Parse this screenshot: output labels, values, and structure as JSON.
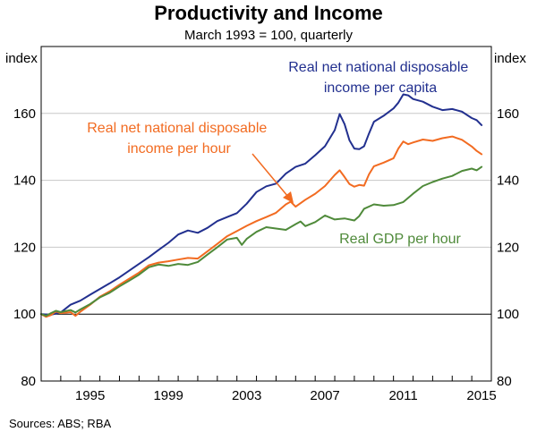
{
  "chart_data": {
    "type": "line",
    "title": "Productivity and Income",
    "subtitle": "March 1993 = 100, quarterly",
    "left_axis_label": "index",
    "right_axis_label": "index",
    "source": "Sources:  ABS; RBA",
    "x_range": [
      1993.0,
      2016.0
    ],
    "ylim": [
      80,
      180
    ],
    "y_ticks": [
      80,
      100,
      120,
      140,
      160
    ],
    "x_tick_years": [
      1995,
      1999,
      2003,
      2007,
      2011,
      2015
    ],
    "x_tick_labels": [
      "1995",
      "1999",
      "2003",
      "2007",
      "2011",
      "2015"
    ],
    "series": [
      {
        "name": "Real net national disposable income per capita",
        "label_lines": [
          "Real net national disposable",
          "income per capita"
        ],
        "color": "#22308f",
        "points": [
          [
            1993.0,
            100.0
          ],
          [
            1993.5,
            99.8
          ],
          [
            1994.0,
            100.5
          ],
          [
            1994.5,
            102.8
          ],
          [
            1995.0,
            104.0
          ],
          [
            1995.5,
            105.8
          ],
          [
            1996.0,
            107.5
          ],
          [
            1996.5,
            109.2
          ],
          [
            1997.0,
            111.0
          ],
          [
            1997.5,
            113.0
          ],
          [
            1998.0,
            115.0
          ],
          [
            1998.5,
            117.0
          ],
          [
            1999.0,
            119.2
          ],
          [
            1999.5,
            121.3
          ],
          [
            2000.0,
            123.8
          ],
          [
            2000.5,
            125.0
          ],
          [
            2001.0,
            124.3
          ],
          [
            2001.5,
            125.8
          ],
          [
            2002.0,
            127.8
          ],
          [
            2002.5,
            129.0
          ],
          [
            2003.0,
            130.2
          ],
          [
            2003.5,
            133.0
          ],
          [
            2004.0,
            136.5
          ],
          [
            2004.5,
            138.2
          ],
          [
            2005.0,
            139.0
          ],
          [
            2005.5,
            142.0
          ],
          [
            2006.0,
            144.0
          ],
          [
            2006.5,
            145.0
          ],
          [
            2007.0,
            147.5
          ],
          [
            2007.5,
            150.2
          ],
          [
            2008.0,
            155.0
          ],
          [
            2008.25,
            159.8
          ],
          [
            2008.5,
            156.8
          ],
          [
            2008.75,
            152.0
          ],
          [
            2009.0,
            149.5
          ],
          [
            2009.25,
            149.3
          ],
          [
            2009.5,
            150.2
          ],
          [
            2009.75,
            154.0
          ],
          [
            2010.0,
            157.5
          ],
          [
            2010.5,
            159.3
          ],
          [
            2011.0,
            161.5
          ],
          [
            2011.25,
            163.2
          ],
          [
            2011.5,
            165.7
          ],
          [
            2011.75,
            165.4
          ],
          [
            2012.0,
            164.3
          ],
          [
            2012.5,
            163.5
          ],
          [
            2013.0,
            162.0
          ],
          [
            2013.5,
            161.0
          ],
          [
            2014.0,
            161.3
          ],
          [
            2014.5,
            160.5
          ],
          [
            2015.0,
            158.6
          ],
          [
            2015.25,
            158.0
          ],
          [
            2015.5,
            156.5
          ]
        ]
      },
      {
        "name": "Real net national disposable income per hour",
        "label_lines": [
          "Real net national disposable",
          "income per hour"
        ],
        "color": "#f26b21",
        "points": [
          [
            1993.0,
            100.0
          ],
          [
            1993.25,
            99.2
          ],
          [
            1993.5,
            99.7
          ],
          [
            1993.75,
            100.8
          ],
          [
            1994.0,
            100.3
          ],
          [
            1994.5,
            100.6
          ],
          [
            1994.75,
            99.5
          ],
          [
            1995.0,
            100.7
          ],
          [
            1995.5,
            102.8
          ],
          [
            1996.0,
            105.2
          ],
          [
            1996.5,
            106.8
          ],
          [
            1997.0,
            108.8
          ],
          [
            1997.5,
            110.6
          ],
          [
            1998.0,
            112.4
          ],
          [
            1998.5,
            114.6
          ],
          [
            1999.0,
            115.4
          ],
          [
            1999.5,
            115.8
          ],
          [
            2000.0,
            116.3
          ],
          [
            2000.5,
            116.8
          ],
          [
            2001.0,
            116.6
          ],
          [
            2001.5,
            118.8
          ],
          [
            2002.0,
            121.0
          ],
          [
            2002.5,
            123.3
          ],
          [
            2003.0,
            124.8
          ],
          [
            2003.5,
            126.4
          ],
          [
            2004.0,
            127.8
          ],
          [
            2004.5,
            129.0
          ],
          [
            2005.0,
            130.3
          ],
          [
            2005.5,
            132.8
          ],
          [
            2005.75,
            133.6
          ],
          [
            2006.0,
            132.1
          ],
          [
            2006.5,
            134.2
          ],
          [
            2007.0,
            136.0
          ],
          [
            2007.5,
            138.3
          ],
          [
            2008.0,
            141.6
          ],
          [
            2008.25,
            143.0
          ],
          [
            2008.5,
            141.0
          ],
          [
            2008.75,
            138.9
          ],
          [
            2009.0,
            138.1
          ],
          [
            2009.25,
            138.6
          ],
          [
            2009.5,
            138.4
          ],
          [
            2009.75,
            141.8
          ],
          [
            2010.0,
            144.2
          ],
          [
            2010.5,
            145.3
          ],
          [
            2011.0,
            146.6
          ],
          [
            2011.25,
            149.5
          ],
          [
            2011.5,
            151.6
          ],
          [
            2011.75,
            150.8
          ],
          [
            2012.0,
            151.3
          ],
          [
            2012.5,
            152.2
          ],
          [
            2013.0,
            151.8
          ],
          [
            2013.5,
            152.6
          ],
          [
            2014.0,
            153.1
          ],
          [
            2014.5,
            152.1
          ],
          [
            2015.0,
            150.1
          ],
          [
            2015.25,
            148.8
          ],
          [
            2015.5,
            147.8
          ]
        ]
      },
      {
        "name": "Real GDP per hour",
        "label_lines": [
          "Real GDP per hour"
        ],
        "color": "#4f8a3a",
        "points": [
          [
            1993.0,
            100.0
          ],
          [
            1993.25,
            99.5
          ],
          [
            1993.5,
            100.3
          ],
          [
            1993.75,
            101.0
          ],
          [
            1994.0,
            100.6
          ],
          [
            1994.5,
            101.2
          ],
          [
            1994.75,
            100.5
          ],
          [
            1995.0,
            101.4
          ],
          [
            1995.5,
            103.0
          ],
          [
            1996.0,
            105.0
          ],
          [
            1996.5,
            106.4
          ],
          [
            1997.0,
            108.3
          ],
          [
            1997.5,
            110.0
          ],
          [
            1998.0,
            111.8
          ],
          [
            1998.5,
            114.0
          ],
          [
            1999.0,
            114.8
          ],
          [
            1999.5,
            114.4
          ],
          [
            2000.0,
            115.0
          ],
          [
            2000.5,
            114.7
          ],
          [
            2001.0,
            115.6
          ],
          [
            2001.5,
            117.8
          ],
          [
            2002.0,
            120.0
          ],
          [
            2002.5,
            122.3
          ],
          [
            2003.0,
            122.8
          ],
          [
            2003.25,
            120.7
          ],
          [
            2003.5,
            122.5
          ],
          [
            2004.0,
            124.6
          ],
          [
            2004.5,
            126.0
          ],
          [
            2005.0,
            125.6
          ],
          [
            2005.5,
            125.2
          ],
          [
            2006.0,
            126.9
          ],
          [
            2006.25,
            127.7
          ],
          [
            2006.5,
            126.3
          ],
          [
            2007.0,
            127.5
          ],
          [
            2007.5,
            129.5
          ],
          [
            2008.0,
            128.3
          ],
          [
            2008.5,
            128.6
          ],
          [
            2009.0,
            128.0
          ],
          [
            2009.25,
            129.3
          ],
          [
            2009.5,
            131.5
          ],
          [
            2010.0,
            132.8
          ],
          [
            2010.5,
            132.4
          ],
          [
            2011.0,
            132.6
          ],
          [
            2011.5,
            133.5
          ],
          [
            2012.0,
            136.0
          ],
          [
            2012.5,
            138.3
          ],
          [
            2013.0,
            139.5
          ],
          [
            2013.5,
            140.5
          ],
          [
            2014.0,
            141.3
          ],
          [
            2014.5,
            142.8
          ],
          [
            2015.0,
            143.5
          ],
          [
            2015.25,
            143.0
          ],
          [
            2015.5,
            144.0
          ]
        ]
      }
    ]
  }
}
